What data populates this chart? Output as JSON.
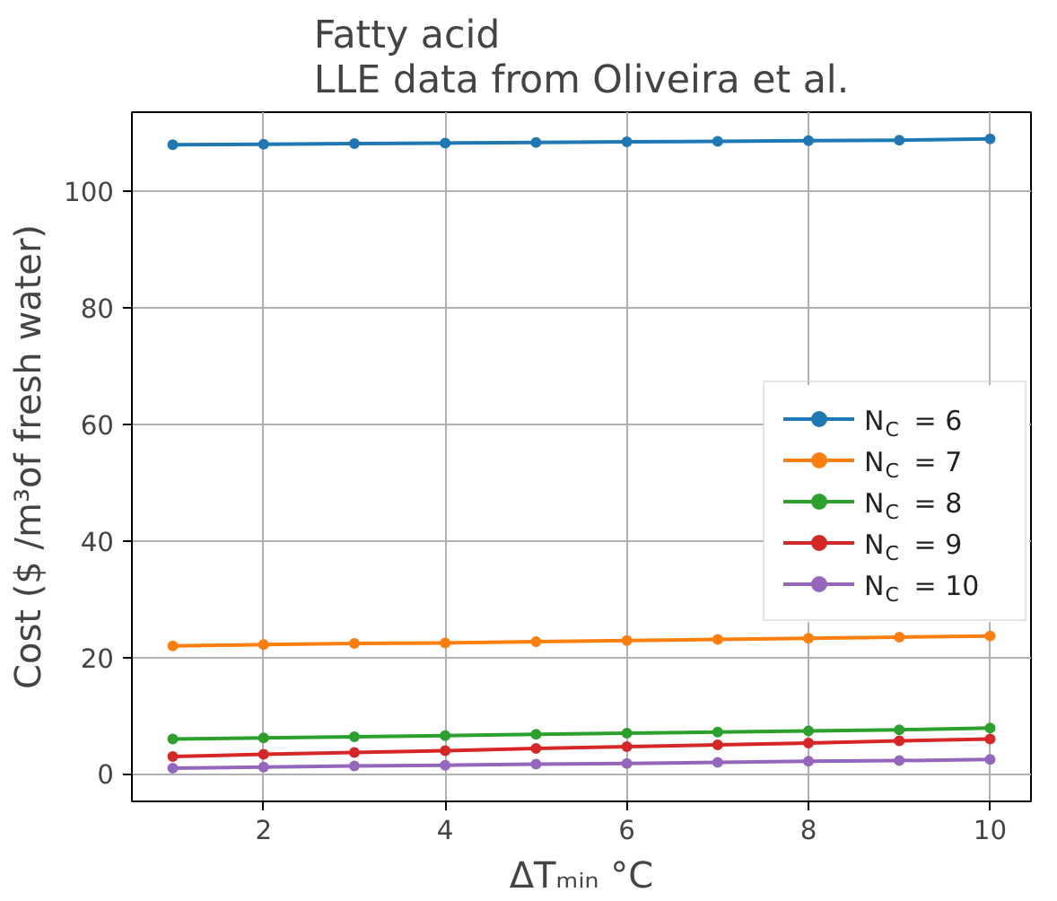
{
  "chart_data": {
    "type": "line",
    "title": "Fatty acid\nLLE data from Oliveira et al.",
    "xlabel": "ΔTₘᵢₙ °C",
    "ylabel": "Cost ($ /m³of fresh water)",
    "x": [
      1,
      2,
      3,
      4,
      5,
      6,
      7,
      8,
      9,
      10
    ],
    "series": [
      {
        "name": "N$_{C}$ = 6",
        "color": "#1f77b4",
        "values": [
          108.0,
          108.1,
          108.2,
          108.3,
          108.4,
          108.5,
          108.6,
          108.7,
          108.8,
          109.0
        ]
      },
      {
        "name": "N$_{C}$ = 7",
        "color": "#ff7f0e",
        "values": [
          22.0,
          22.2,
          22.4,
          22.5,
          22.7,
          22.9,
          23.1,
          23.3,
          23.5,
          23.7
        ]
      },
      {
        "name": "N$_{C}$ = 8",
        "color": "#2ca02c",
        "values": [
          6.0,
          6.2,
          6.4,
          6.6,
          6.8,
          7.0,
          7.2,
          7.4,
          7.6,
          7.9
        ]
      },
      {
        "name": "N$_{C}$ = 9",
        "color": "#d62728",
        "values": [
          3.0,
          3.4,
          3.7,
          4.0,
          4.4,
          4.7,
          5.0,
          5.3,
          5.7,
          6.0
        ]
      },
      {
        "name": "N$_{C}$ = 10",
        "color": "#9467bd",
        "values": [
          1.0,
          1.2,
          1.4,
          1.5,
          1.7,
          1.8,
          2.0,
          2.2,
          2.3,
          2.5
        ]
      }
    ],
    "xlim": [
      0.55,
      10.45
    ],
    "ylim": [
      -4.7,
      113.6
    ],
    "xticks": [
      2,
      4,
      6,
      8,
      10
    ],
    "yticks": [
      0,
      20,
      40,
      60,
      80,
      100
    ],
    "grid": true,
    "legend": "right",
    "marker": "circle",
    "line_style": "solid"
  }
}
